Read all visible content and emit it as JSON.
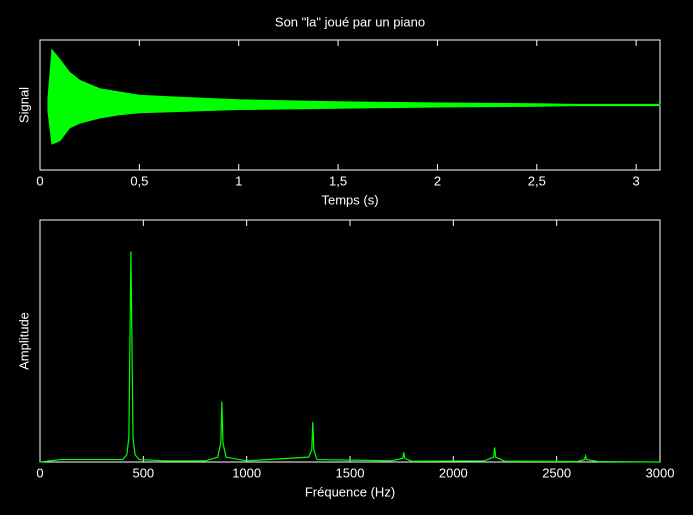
{
  "chart_data": [
    {
      "type": "envelope",
      "title": "Son \"la\" joué par un piano",
      "x_label": "Temps (s)",
      "y_label": "Signal",
      "color": "#00ff00",
      "x": [
        0.04,
        0.06,
        0.1,
        0.15,
        0.2,
        0.3,
        0.4,
        0.5,
        0.7,
        1.0,
        1.5,
        2.0,
        2.5,
        2.7,
        3.12
      ],
      "upper": [
        0.1,
        0.85,
        0.7,
        0.5,
        0.38,
        0.25,
        0.2,
        0.15,
        0.12,
        0.08,
        0.05,
        0.03,
        0.02,
        0.01,
        0.01
      ],
      "lower": [
        -0.1,
        -0.6,
        -0.55,
        -0.35,
        -0.28,
        -0.2,
        -0.15,
        -0.12,
        -0.1,
        -0.07,
        -0.05,
        -0.03,
        -0.02,
        -0.01,
        -0.01
      ],
      "xlim": [
        0,
        3.12
      ],
      "ylim": [
        -1,
        1
      ],
      "xticks": [
        0,
        {
          "value": 0.5,
          "label": "0,5"
        },
        1,
        {
          "value": 1.5,
          "label": "1,5"
        },
        2,
        {
          "value": 2.5,
          "label": "2,5"
        },
        3
      ]
    },
    {
      "type": "line",
      "x_label": "Fréquence (Hz)",
      "y_label": "Amplitude",
      "color": "#00ff00",
      "x": [
        0,
        100,
        200,
        300,
        400,
        420,
        430,
        440,
        450,
        460,
        480,
        600,
        800,
        860,
        875,
        880,
        885,
        900,
        1000,
        1300,
        1315,
        1320,
        1325,
        1340,
        1700,
        1755,
        1760,
        1765,
        1800,
        2150,
        2195,
        2200,
        2205,
        2250,
        2600,
        2635,
        2640,
        2645,
        2700,
        3000
      ],
      "values": [
        0,
        0.01,
        0.01,
        0.01,
        0.01,
        0.03,
        0.1,
        0.87,
        0.1,
        0.03,
        0.01,
        0.005,
        0.005,
        0.02,
        0.08,
        0.25,
        0.08,
        0.02,
        0.005,
        0.02,
        0.05,
        0.165,
        0.05,
        0.01,
        0.005,
        0.015,
        0.04,
        0.015,
        0.003,
        0.005,
        0.02,
        0.06,
        0.02,
        0.003,
        0.002,
        0.01,
        0.025,
        0.01,
        0.002,
        0
      ],
      "xlim": [
        0,
        3000
      ],
      "ylim": [
        0,
        1
      ],
      "xticks": [
        0,
        500,
        1000,
        1500,
        2000,
        2500,
        3000
      ]
    }
  ]
}
